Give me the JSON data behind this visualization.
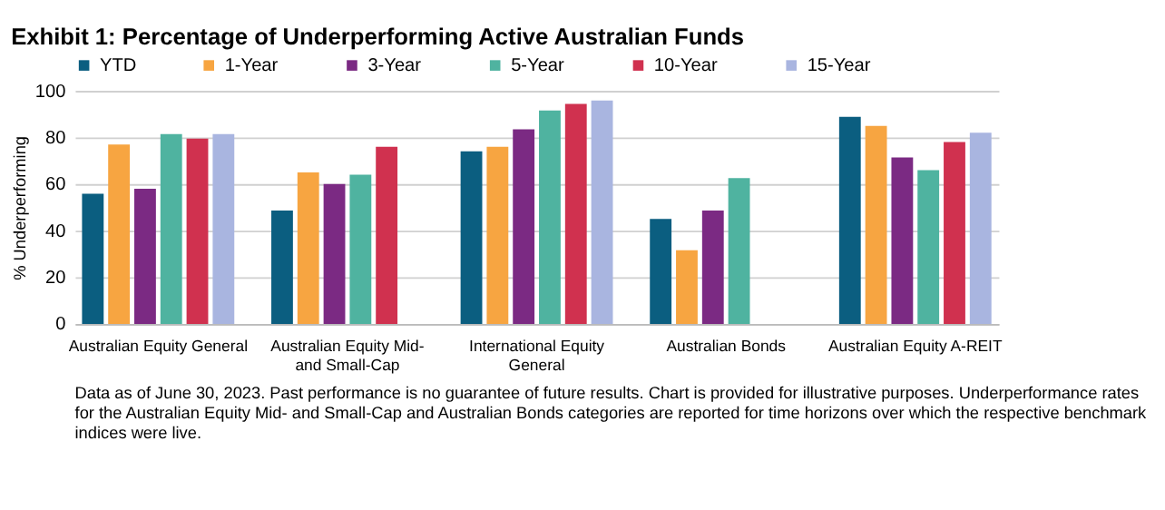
{
  "chart_data": {
    "type": "bar",
    "title": "Exhibit 1: Percentage of Underperforming Active Australian Funds",
    "categories": [
      "Australian Equity General",
      "Australian Equity Mid- and Small-Cap",
      "International Equity General",
      "Australian Bonds",
      "Australian Equity A-REIT"
    ],
    "series": [
      {
        "name": "YTD",
        "color": "#0b5e80",
        "values": [
          55.8,
          48.6,
          74,
          45,
          88.8
        ]
      },
      {
        "name": "1-Year",
        "color": "#f7a541",
        "values": [
          77,
          65,
          76,
          31.6,
          84.9
        ]
      },
      {
        "name": "3-Year",
        "color": "#7b2a83",
        "values": [
          58,
          60,
          83.5,
          48.6,
          71.4
        ]
      },
      {
        "name": "5-Year",
        "color": "#4fb3a0",
        "values": [
          81.4,
          64,
          91.6,
          62.6,
          66
        ]
      },
      {
        "name": "10-Year",
        "color": "#d0314f",
        "values": [
          79.5,
          76,
          94.4,
          null,
          78
        ]
      },
      {
        "name": "15-Year",
        "color": "#a9b5e0",
        "values": [
          81.4,
          null,
          95.8,
          null,
          82
        ]
      }
    ],
    "ylabel": "% Underperforming",
    "ylim": [
      0,
      100
    ],
    "yticks": [
      0,
      20,
      40,
      60,
      80,
      100
    ],
    "grid": "y",
    "legend": "top",
    "annotations": [
      "Data as of June 30, 2023.  Past performance is no guarantee of future results.  Chart is provided for illustrative purposes.  Underperformance rates for the Australian Equity Mid- and Small-Cap and Australian Bonds categories are reported for time horizons over which the respective benchmark indices were live."
    ]
  }
}
